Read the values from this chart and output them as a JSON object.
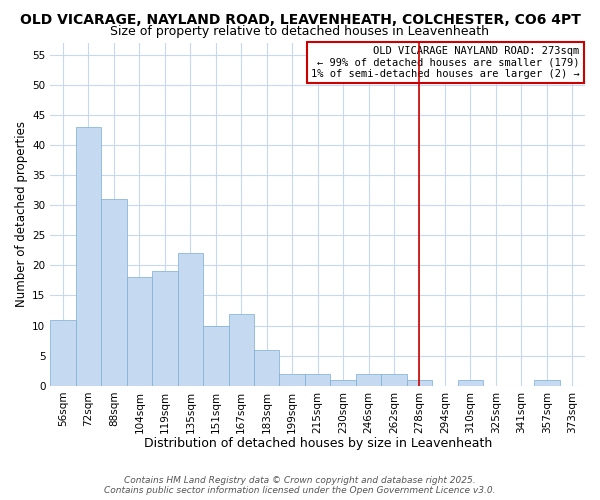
{
  "title": "OLD VICARAGE, NAYLAND ROAD, LEAVENHEATH, COLCHESTER, CO6 4PT",
  "subtitle": "Size of property relative to detached houses in Leavenheath",
  "xlabel": "Distribution of detached houses by size in Leavenheath",
  "ylabel": "Number of detached properties",
  "categories": [
    "56sqm",
    "72sqm",
    "88sqm",
    "104sqm",
    "119sqm",
    "135sqm",
    "151sqm",
    "167sqm",
    "183sqm",
    "199sqm",
    "215sqm",
    "230sqm",
    "246sqm",
    "262sqm",
    "278sqm",
    "294sqm",
    "310sqm",
    "325sqm",
    "341sqm",
    "357sqm",
    "373sqm"
  ],
  "values": [
    11,
    43,
    31,
    18,
    19,
    22,
    10,
    12,
    6,
    2,
    2,
    1,
    2,
    2,
    1,
    0,
    1,
    0,
    0,
    1,
    0
  ],
  "bar_color": "#c5d9f0",
  "bar_edge_color": "#7aadd4",
  "background_color": "#ffffff",
  "plot_bg_color": "#ffffff",
  "grid_color": "#c8d8ee",
  "vline_x": 14,
  "vline_color": "#cc0000",
  "legend_title": "OLD VICARAGE NAYLAND ROAD: 273sqm",
  "legend_line1": "← 99% of detached houses are smaller (179)",
  "legend_line2": "1% of semi-detached houses are larger (2) →",
  "legend_box_color": "#cc0000",
  "ylim": [
    0,
    57
  ],
  "yticks": [
    0,
    5,
    10,
    15,
    20,
    25,
    30,
    35,
    40,
    45,
    50,
    55
  ],
  "title_fontsize": 10,
  "subtitle_fontsize": 9,
  "xlabel_fontsize": 9,
  "ylabel_fontsize": 8.5,
  "tick_fontsize": 7.5,
  "legend_fontsize": 7.5,
  "footer_line1": "Contains HM Land Registry data © Crown copyright and database right 2025.",
  "footer_line2": "Contains public sector information licensed under the Open Government Licence v3.0.",
  "footer_fontsize": 6.5
}
